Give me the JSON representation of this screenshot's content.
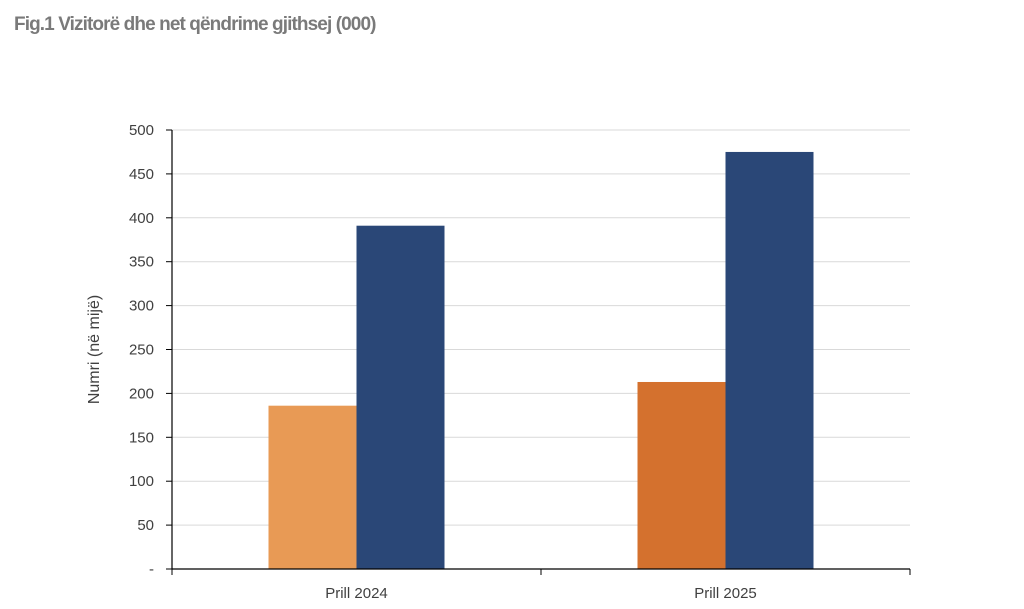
{
  "title": "Fig.1 Vizitorë dhe net qëndrime gjithsej (000)",
  "chart_data": {
    "type": "bar",
    "title": "Fig.1 Vizitorë dhe net qëndrime gjithsej (000)",
    "xlabel": "",
    "ylabel": "Numri (në mijë)",
    "categories": [
      "Prill 2024",
      "Prill 2025"
    ],
    "series": [
      {
        "values": [
          186,
          213
        ],
        "colors": [
          "#E89A55",
          "#D4712E"
        ]
      },
      {
        "values": [
          391,
          475
        ],
        "colors": [
          "#2A4777",
          "#2A4777"
        ]
      }
    ],
    "ylim": [
      0,
      500
    ],
    "yticks": [
      0,
      50,
      100,
      150,
      200,
      250,
      300,
      350,
      400,
      450,
      500
    ],
    "ytick_labels": [
      "-",
      "50",
      "100",
      "150",
      "200",
      "250",
      "300",
      "350",
      "400",
      "450",
      "500"
    ],
    "grid": true,
    "gridline_color": "#d9d9d9",
    "axis_color": "#000000"
  }
}
